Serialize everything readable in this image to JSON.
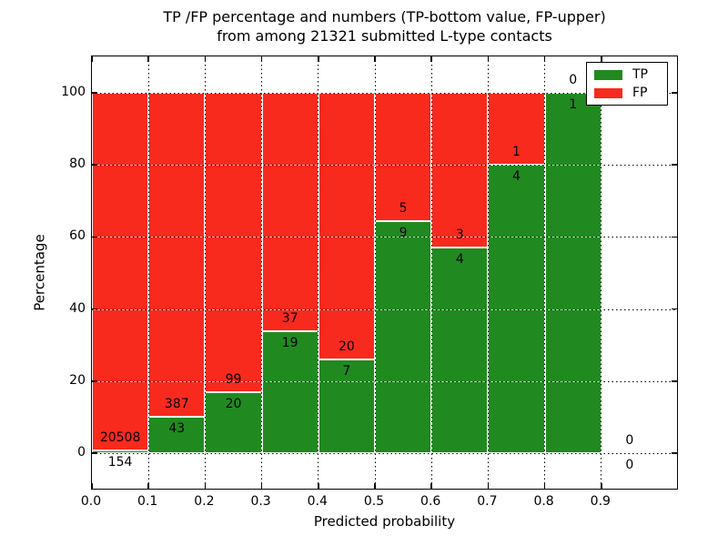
{
  "chart_data": {
    "type": "bar",
    "stacked": true,
    "title_line1": "TP /FP percentage and numbers (TP-bottom value, FP-upper)",
    "title_line2": "from among 21321 submitted L-type contacts",
    "xlabel": "Predicted probability",
    "ylabel": "Percentage",
    "xlim": [
      0,
      1.03
    ],
    "ylim": [
      -10,
      110
    ],
    "grid": true,
    "xtick_values": [
      0,
      0.1,
      0.2,
      0.3,
      0.4,
      0.5,
      0.6,
      0.7,
      0.8,
      0.9
    ],
    "xtick_labels": [
      "0.0",
      "0.1",
      "0.2",
      "0.3",
      "0.4",
      "0.5",
      "0.6",
      "0.7",
      "0.8",
      "0.9"
    ],
    "ytick_values": [
      0,
      20,
      40,
      60,
      80,
      100
    ],
    "ytick_labels": [
      "0",
      "20",
      "40",
      "60",
      "80",
      "100"
    ],
    "colors": {
      "tp": "#208a20",
      "fp": "#f82a1e",
      "bar_edge": "#ffffff",
      "axis": "#000000"
    },
    "legend": {
      "position": "upper right",
      "items": [
        {
          "label": "TP",
          "color_key": "tp"
        },
        {
          "label": "FP",
          "color_key": "fp"
        }
      ]
    },
    "bins": [
      {
        "x_start": 0.0,
        "x_end": 0.1,
        "tp": 154,
        "fp": 20508,
        "tp_pct": 0.75
      },
      {
        "x_start": 0.1,
        "x_end": 0.2,
        "tp": 43,
        "fp": 387,
        "tp_pct": 10.0
      },
      {
        "x_start": 0.2,
        "x_end": 0.3,
        "tp": 20,
        "fp": 99,
        "tp_pct": 16.8
      },
      {
        "x_start": 0.3,
        "x_end": 0.4,
        "tp": 19,
        "fp": 37,
        "tp_pct": 33.9
      },
      {
        "x_start": 0.4,
        "x_end": 0.5,
        "tp": 7,
        "fp": 20,
        "tp_pct": 25.9
      },
      {
        "x_start": 0.5,
        "x_end": 0.6,
        "tp": 9,
        "fp": 5,
        "tp_pct": 64.3
      },
      {
        "x_start": 0.6,
        "x_end": 0.7,
        "tp": 4,
        "fp": 3,
        "tp_pct": 57.1
      },
      {
        "x_start": 0.7,
        "x_end": 0.8,
        "tp": 4,
        "fp": 1,
        "tp_pct": 80.0
      },
      {
        "x_start": 0.8,
        "x_end": 0.9,
        "tp": 1,
        "fp": 0,
        "tp_pct": 100.0
      },
      {
        "x_start": 0.9,
        "x_end": 1.0,
        "tp": 0,
        "fp": 0,
        "tp_pct": 0.0
      }
    ]
  }
}
